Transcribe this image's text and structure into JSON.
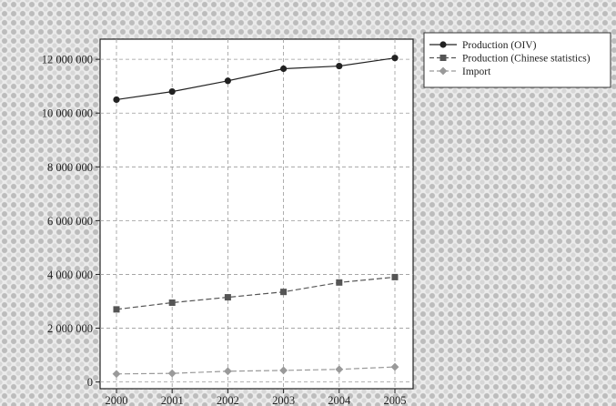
{
  "chart_data": {
    "type": "line",
    "x": [
      "2000",
      "2001",
      "2002",
      "2003",
      "2004",
      "2005"
    ],
    "series": [
      {
        "name": "Production (OIV)",
        "values": [
          10500000,
          10800000,
          11200000,
          11650000,
          11750000,
          12050000
        ],
        "color": "#222222",
        "marker": "circle",
        "line_style": "solid"
      },
      {
        "name": "Production (Chinese statistics)",
        "values": [
          2700000,
          2950000,
          3150000,
          3350000,
          3700000,
          3900000
        ],
        "color": "#555555",
        "marker": "square",
        "line_style": "dashed"
      },
      {
        "name": "Import",
        "values": [
          300000,
          320000,
          400000,
          430000,
          470000,
          560000
        ],
        "color": "#9a9a9a",
        "marker": "diamond",
        "line_style": "dashed"
      }
    ],
    "yticks": [
      0,
      2000000,
      4000000,
      6000000,
      8000000,
      10000000,
      12000000
    ],
    "ytick_labels": [
      "0",
      "2 000 000",
      "4 000 000",
      "6 000 000",
      "8 000 000",
      "10 000 000",
      "12 000 000"
    ],
    "ylim": [
      -250000,
      12750000
    ],
    "grid": true,
    "legend_position": "top-right, outside plot",
    "title": "",
    "xlabel": "",
    "ylabel": ""
  }
}
